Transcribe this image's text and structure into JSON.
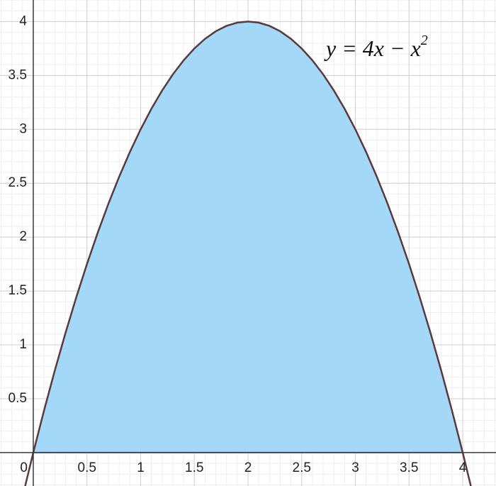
{
  "chart_data": {
    "type": "line",
    "xlim": [
      -0.31,
      4.31
    ],
    "ylim": [
      -0.31,
      4.2
    ],
    "xticks": [
      0,
      0.5,
      1,
      1.5,
      2,
      2.5,
      3,
      3.5,
      4
    ],
    "yticks": [
      0.5,
      1,
      1.5,
      2,
      2.5,
      3,
      3.5,
      4
    ],
    "grid": true,
    "minor_grid_step": 0.1,
    "annotation": {
      "text": "y = 4x − x",
      "superscript": "2"
    },
    "series": [
      {
        "type": "line",
        "color": "#5b3a3c",
        "x": [
          -0.1,
          0,
          0.1,
          0.2,
          0.3,
          0.4,
          0.5,
          0.6,
          0.7,
          0.8,
          0.9,
          1,
          1.1,
          1.2,
          1.3,
          1.4,
          1.5,
          1.6,
          1.7,
          1.8,
          1.9,
          2,
          2.1,
          2.2,
          2.3,
          2.4,
          2.5,
          2.6,
          2.7,
          2.8,
          2.9,
          3,
          3.1,
          3.2,
          3.3,
          3.4,
          3.5,
          3.6,
          3.7,
          3.8,
          3.9,
          4,
          4.1
        ],
        "values": [
          -0.41,
          0,
          0.39,
          0.76,
          1.11,
          1.44,
          1.75,
          2.04,
          2.31,
          2.56,
          2.79,
          3,
          3.19,
          3.36,
          3.51,
          3.64,
          3.75,
          3.84,
          3.91,
          3.96,
          3.99,
          4,
          3.99,
          3.96,
          3.91,
          3.84,
          3.75,
          3.64,
          3.51,
          3.36,
          3.19,
          3,
          2.79,
          2.56,
          2.31,
          2.04,
          1.75,
          1.44,
          1.11,
          0.76,
          0.39,
          0,
          -0.41
        ]
      },
      {
        "type": "area",
        "color": "#2d70b3",
        "fill": "#a3d8f8",
        "x": [
          0,
          0.1,
          0.2,
          0.3,
          0.4,
          0.5,
          0.6,
          0.7,
          0.8,
          0.9,
          1,
          1.1,
          1.2,
          1.3,
          1.4,
          1.5,
          1.6,
          1.7,
          1.8,
          1.9,
          2,
          2.1,
          2.2,
          2.3,
          2.4,
          2.5,
          2.6,
          2.7,
          2.8,
          2.9,
          3,
          3.1,
          3.2,
          3.3,
          3.4,
          3.5,
          3.6,
          3.7,
          3.8,
          3.9,
          4
        ],
        "values": [
          0,
          0.39,
          0.76,
          1.11,
          1.44,
          1.75,
          2.04,
          2.31,
          2.56,
          2.79,
          3,
          3.19,
          3.36,
          3.51,
          3.64,
          3.75,
          3.84,
          3.91,
          3.96,
          3.99,
          4,
          3.99,
          3.96,
          3.91,
          3.84,
          3.75,
          3.64,
          3.51,
          3.36,
          3.19,
          3,
          2.79,
          2.56,
          2.31,
          2.04,
          1.75,
          1.44,
          1.11,
          0.76,
          0.39,
          0
        ]
      }
    ]
  }
}
